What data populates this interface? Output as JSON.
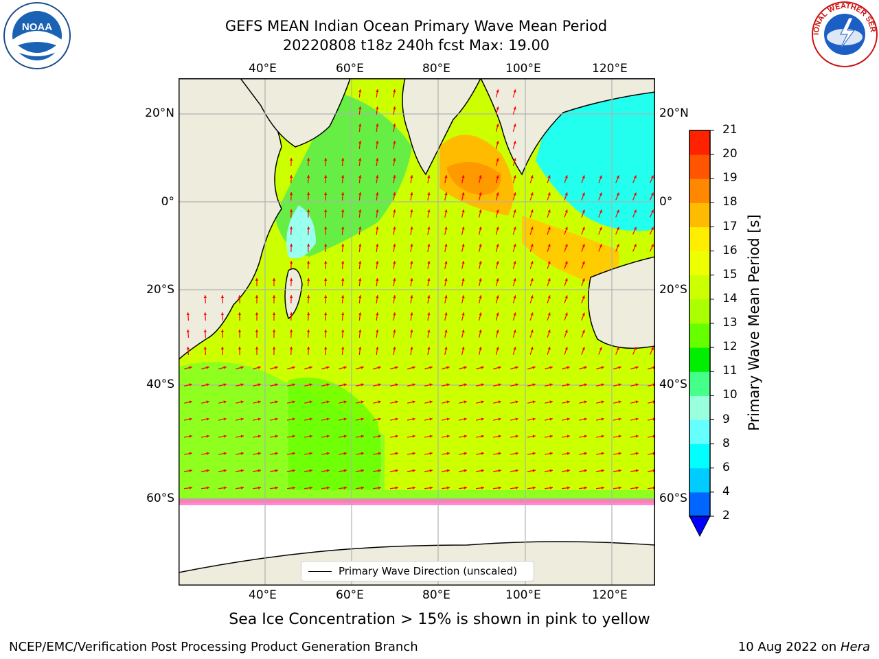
{
  "header": {
    "title_line1": "GEFS MEAN Indian Ocean Primary Wave Mean Period",
    "title_line2": "20220808 t18z 240h fcst   Max: 19.00"
  },
  "logos": {
    "left": "noaa-logo",
    "left_text": "NOAA",
    "right": "national-weather-service-logo",
    "right_text": "NATIONAL WEATHER SERVICE"
  },
  "map": {
    "lon_ticks": [
      "40°E",
      "60°E",
      "80°E",
      "100°E",
      "120°E"
    ],
    "lat_ticks": [
      "20°N",
      "0°",
      "20°S",
      "40°S",
      "60°S"
    ],
    "lon_range": [
      20,
      130
    ],
    "lat_range": [
      -72,
      28
    ],
    "land_color": "#eeecdd",
    "ice_color": "#ffffff",
    "arrow_color": "#ff0000",
    "legend_label": "Primary Wave Direction (unscaled)"
  },
  "colorbar": {
    "title": "Primary Wave Mean Period [s]",
    "tick_labels": [
      "2",
      "4",
      "6",
      "8",
      "9",
      "10",
      "11",
      "12",
      "13",
      "14",
      "15",
      "16",
      "17",
      "18",
      "19",
      "20",
      "21"
    ],
    "colors": [
      "#0066ff",
      "#00ccff",
      "#00ffff",
      "#66ffff",
      "#99ffdd",
      "#44ff88",
      "#00ee00",
      "#66ff00",
      "#aaff00",
      "#ccff00",
      "#eeff00",
      "#ffee00",
      "#ffbb00",
      "#ff8800",
      "#ff5500",
      "#ff2200"
    ],
    "under_color": "#0000ff"
  },
  "footer": {
    "subtitle": "Sea Ice Concentration > 15% is shown in pink to yellow",
    "left": "NCEP/EMC/Verification Post Processing Product Generation Branch",
    "right_prefix": "10 Aug 2022 on ",
    "right_host": "Hera"
  }
}
